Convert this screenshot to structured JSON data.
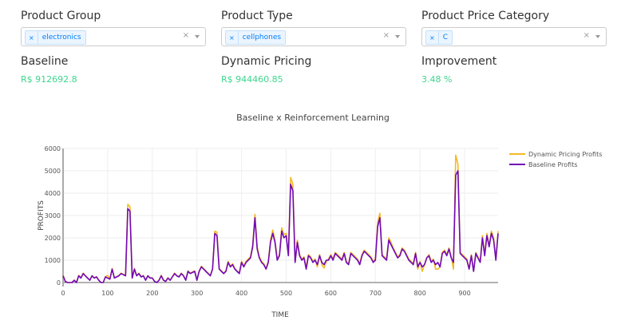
{
  "filters": [
    {
      "label": "Product Group",
      "value": "electronics"
    },
    {
      "label": "Product Type",
      "value": "cellphones"
    },
    {
      "label": "Product Price Category",
      "value": "C"
    }
  ],
  "filter_clear": "×",
  "tag_remove": "×",
  "metrics": [
    {
      "label": "Baseline",
      "value": "R$ 912692.8"
    },
    {
      "label": "Dynamic Pricing",
      "value": "R$ 944460.85"
    },
    {
      "label": "Improvement",
      "value": "3.48 %"
    }
  ],
  "chart_data": {
    "type": "line",
    "title": "Baseline x Reinforcement Learning",
    "xlabel": "TIME",
    "ylabel": "PROFITS",
    "xlim": [
      0,
      975
    ],
    "ylim": [
      0,
      6000
    ],
    "xticks": [
      0,
      100,
      200,
      300,
      400,
      500,
      600,
      700,
      800,
      900
    ],
    "yticks": [
      0,
      1000,
      2000,
      3000,
      4000,
      5000,
      6000
    ],
    "grid": true,
    "legend_position": "top-right",
    "x_start": 0,
    "x_step": 5,
    "series": [
      {
        "name": "Dynamic Pricing Profits",
        "color": "#f5b821",
        "values": [
          320,
          60,
          0,
          0,
          0,
          110,
          0,
          320,
          210,
          420,
          310,
          210,
          110,
          310,
          210,
          260,
          110,
          0,
          0,
          260,
          320,
          160,
          630,
          210,
          260,
          310,
          420,
          370,
          310,
          3500,
          3400,
          210,
          630,
          310,
          420,
          260,
          310,
          110,
          310,
          210,
          210,
          60,
          0,
          110,
          320,
          110,
          60,
          210,
          110,
          260,
          420,
          310,
          260,
          420,
          310,
          110,
          520,
          420,
          470,
          520,
          110,
          520,
          730,
          630,
          520,
          420,
          310,
          630,
          2300,
          2250,
          630,
          520,
          420,
          520,
          950,
          730,
          840,
          630,
          520,
          420,
          950,
          730,
          950,
          1050,
          1150,
          1700,
          3050,
          1600,
          1150,
          950,
          840,
          630,
          950,
          1900,
          2350,
          1900,
          1050,
          1250,
          2450,
          2150,
          2200,
          1250,
          4700,
          4400,
          950,
          1900,
          1250,
          1050,
          1150,
          700,
          1250,
          1150,
          950,
          1050,
          700,
          1250,
          800,
          650,
          950,
          1050,
          1250,
          1050,
          1350,
          1250,
          1150,
          1050,
          1350,
          950,
          840,
          1350,
          1250,
          1150,
          1050,
          840,
          1250,
          1450,
          1350,
          1250,
          1150,
          950,
          1050,
          2700,
          3100,
          1250,
          1150,
          1050,
          2000,
          1800,
          1550,
          1350,
          1150,
          1250,
          1550,
          1450,
          1250,
          1050,
          950,
          840,
          1350,
          600,
          950,
          500,
          800,
          1100,
          1250,
          950,
          1050,
          600,
          600,
          700,
          1350,
          1450,
          1250,
          1550,
          1150,
          600,
          5700,
          5300,
          1350,
          1250,
          1150,
          1050,
          600,
          1250,
          500,
          1350,
          1150,
          950,
          2100,
          1250,
          2200,
          1650,
          2300,
          2000,
          1050,
          2300
        ]
      },
      {
        "name": "Baseline Profits",
        "color": "#7209b7",
        "values": [
          300,
          50,
          0,
          0,
          0,
          100,
          0,
          300,
          200,
          400,
          300,
          200,
          100,
          300,
          200,
          250,
          100,
          0,
          0,
          250,
          200,
          150,
          600,
          200,
          250,
          300,
          400,
          350,
          300,
          3300,
          3200,
          200,
          600,
          300,
          400,
          250,
          300,
          100,
          300,
          200,
          200,
          50,
          0,
          100,
          300,
          100,
          50,
          200,
          100,
          250,
          400,
          300,
          250,
          400,
          300,
          100,
          500,
          400,
          450,
          500,
          100,
          500,
          700,
          600,
          500,
          400,
          300,
          600,
          2200,
          2100,
          600,
          500,
          400,
          500,
          900,
          700,
          800,
          600,
          500,
          400,
          900,
          700,
          900,
          1000,
          1100,
          1600,
          2900,
          1500,
          1100,
          900,
          800,
          600,
          900,
          1800,
          2200,
          1800,
          1000,
          1200,
          2300,
          2000,
          2100,
          1200,
          4400,
          4100,
          900,
          1800,
          1200,
          1000,
          1100,
          600,
          1200,
          1100,
          900,
          1000,
          800,
          1200,
          900,
          800,
          1000,
          1000,
          1200,
          1000,
          1300,
          1200,
          1100,
          1000,
          1300,
          900,
          800,
          1300,
          1200,
          1100,
          1000,
          800,
          1200,
          1400,
          1300,
          1200,
          1100,
          900,
          1000,
          2500,
          2900,
          1200,
          1100,
          1000,
          1900,
          1700,
          1500,
          1300,
          1100,
          1200,
          1500,
          1400,
          1200,
          1000,
          900,
          800,
          1300,
          700,
          900,
          700,
          800,
          1100,
          1200,
          900,
          1000,
          800,
          900,
          700,
          1300,
          1400,
          1200,
          1500,
          1100,
          900,
          4800,
          5000,
          1300,
          1200,
          1100,
          1000,
          600,
          1200,
          500,
          1300,
          1100,
          900,
          2000,
          1200,
          2100,
          1600,
          2200,
          1900,
          1000,
          2200
        ]
      }
    ]
  }
}
